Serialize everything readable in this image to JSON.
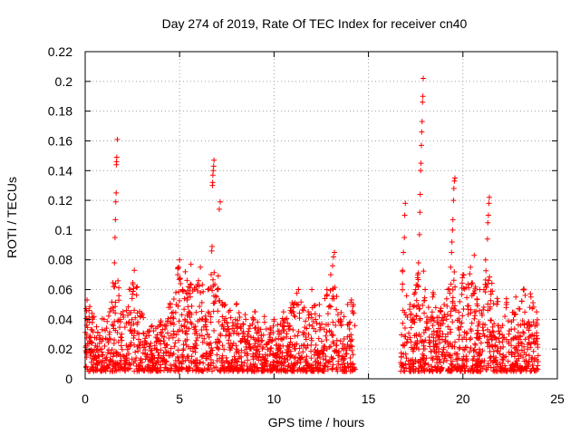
{
  "chart_data": {
    "type": "scatter",
    "title": "Day 274 of 2019, Rate Of TEC Index for receiver cn40",
    "xlabel": "GPS time / hours",
    "ylabel": "ROTI / TECUs",
    "xlim": [
      0,
      25
    ],
    "ylim": [
      0,
      0.22
    ],
    "x_ticks": [
      "0",
      "5",
      "10",
      "15",
      "20",
      "25"
    ],
    "x_tick_values": [
      0,
      5,
      10,
      15,
      20,
      25
    ],
    "y_ticks": [
      "0",
      "0.02",
      "0.04",
      "0.06",
      "0.08",
      "0.1",
      "0.12",
      "0.14",
      "0.16",
      "0.18",
      "0.2",
      "0.22"
    ],
    "y_tick_values": [
      0,
      0.02,
      0.04,
      0.06,
      0.08,
      0.1,
      0.12,
      0.14,
      0.16,
      0.18,
      0.2,
      0.22
    ],
    "grid": true,
    "marker": "+",
    "color": "#ff0000",
    "data_gap_hours": [
      14.3,
      16.7
    ],
    "series": [
      {
        "name": "ROTI",
        "points": [
          [
            0.1,
            0.053
          ],
          [
            0.2,
            0.046
          ],
          [
            0.4,
            0.041
          ],
          [
            0.6,
            0.035
          ],
          [
            1.0,
            0.04
          ],
          [
            1.3,
            0.045
          ],
          [
            1.5,
            0.062
          ],
          [
            1.55,
            0.078
          ],
          [
            1.58,
            0.095
          ],
          [
            1.6,
            0.107
          ],
          [
            1.62,
            0.119
          ],
          [
            1.64,
            0.125
          ],
          [
            1.65,
            0.144
          ],
          [
            1.66,
            0.146
          ],
          [
            1.67,
            0.149
          ],
          [
            1.7,
            0.161
          ],
          [
            2.0,
            0.043
          ],
          [
            2.4,
            0.06
          ],
          [
            2.6,
            0.073
          ],
          [
            3.0,
            0.044
          ],
          [
            3.5,
            0.035
          ],
          [
            4.0,
            0.038
          ],
          [
            4.5,
            0.05
          ],
          [
            4.8,
            0.058
          ],
          [
            4.9,
            0.07
          ],
          [
            4.95,
            0.075
          ],
          [
            5.0,
            0.08
          ],
          [
            5.3,
            0.072
          ],
          [
            5.6,
            0.077
          ],
          [
            5.8,
            0.06
          ],
          [
            6.0,
            0.066
          ],
          [
            6.1,
            0.075
          ],
          [
            6.5,
            0.06
          ],
          [
            6.7,
            0.086
          ],
          [
            6.72,
            0.089
          ],
          [
            6.74,
            0.13
          ],
          [
            6.75,
            0.132
          ],
          [
            6.76,
            0.137
          ],
          [
            6.78,
            0.14
          ],
          [
            6.8,
            0.143
          ],
          [
            6.82,
            0.147
          ],
          [
            7.0,
            0.06
          ],
          [
            7.1,
            0.114
          ],
          [
            7.15,
            0.119
          ],
          [
            7.3,
            0.05
          ],
          [
            7.6,
            0.045
          ],
          [
            8.0,
            0.05
          ],
          [
            8.5,
            0.04
          ],
          [
            9.0,
            0.045
          ],
          [
            9.5,
            0.038
          ],
          [
            10.0,
            0.04
          ],
          [
            10.5,
            0.045
          ],
          [
            11.0,
            0.05
          ],
          [
            11.3,
            0.06
          ],
          [
            11.6,
            0.048
          ],
          [
            12.0,
            0.06
          ],
          [
            12.4,
            0.05
          ],
          [
            12.8,
            0.06
          ],
          [
            13.0,
            0.07
          ],
          [
            13.1,
            0.076
          ],
          [
            13.15,
            0.082
          ],
          [
            13.2,
            0.085
          ],
          [
            13.5,
            0.04
          ],
          [
            13.9,
            0.05
          ],
          [
            14.1,
            0.053
          ],
          [
            14.2,
            0.05
          ],
          [
            16.8,
            0.073
          ],
          [
            16.85,
            0.085
          ],
          [
            16.9,
            0.095
          ],
          [
            16.92,
            0.11
          ],
          [
            16.95,
            0.118
          ],
          [
            17.2,
            0.05
          ],
          [
            17.5,
            0.06
          ],
          [
            17.6,
            0.068
          ],
          [
            17.65,
            0.078
          ],
          [
            17.7,
            0.097
          ],
          [
            17.72,
            0.112
          ],
          [
            17.74,
            0.124
          ],
          [
            17.76,
            0.14
          ],
          [
            17.78,
            0.145
          ],
          [
            17.8,
            0.157
          ],
          [
            17.82,
            0.166
          ],
          [
            17.84,
            0.173
          ],
          [
            17.86,
            0.186
          ],
          [
            17.88,
            0.19
          ],
          [
            17.9,
            0.202
          ],
          [
            18.0,
            0.06
          ],
          [
            18.4,
            0.055
          ],
          [
            18.8,
            0.045
          ],
          [
            19.2,
            0.06
          ],
          [
            19.35,
            0.075
          ],
          [
            19.4,
            0.085
          ],
          [
            19.42,
            0.092
          ],
          [
            19.45,
            0.1
          ],
          [
            19.47,
            0.107
          ],
          [
            19.5,
            0.12
          ],
          [
            19.52,
            0.128
          ],
          [
            19.55,
            0.133
          ],
          [
            19.58,
            0.135
          ],
          [
            20.0,
            0.07
          ],
          [
            20.4,
            0.075
          ],
          [
            20.6,
            0.083
          ],
          [
            20.9,
            0.06
          ],
          [
            21.2,
            0.08
          ],
          [
            21.3,
            0.094
          ],
          [
            21.32,
            0.105
          ],
          [
            21.35,
            0.11
          ],
          [
            21.38,
            0.118
          ],
          [
            21.4,
            0.122
          ],
          [
            21.8,
            0.05
          ],
          [
            22.3,
            0.05
          ],
          [
            22.8,
            0.055
          ],
          [
            23.2,
            0.06
          ],
          [
            23.6,
            0.055
          ],
          [
            23.9,
            0.045
          ]
        ]
      }
    ]
  }
}
